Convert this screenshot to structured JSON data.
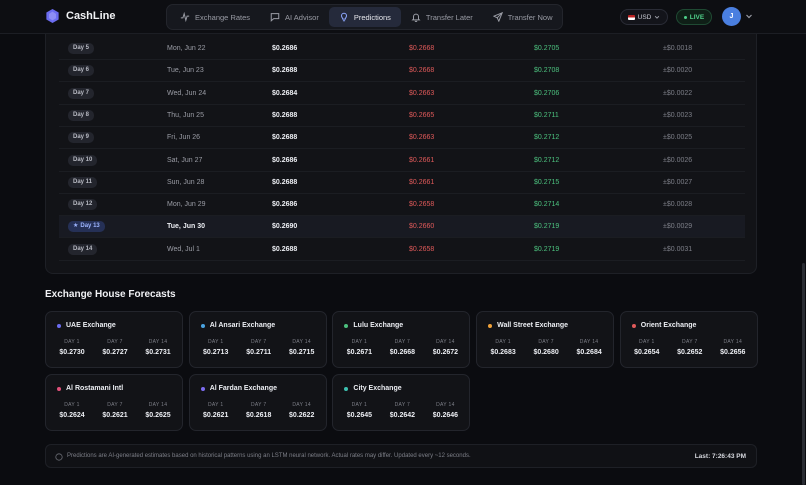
{
  "app": {
    "name": "CashLine",
    "logo_icon": "hexagon-logo-icon",
    "brand_color": "#6b6cf0"
  },
  "nav": [
    {
      "label": "Exchange Rates",
      "icon": "activity-icon",
      "active": false
    },
    {
      "label": "AI Advisor",
      "icon": "chat-icon",
      "active": false
    },
    {
      "label": "Predictions",
      "icon": "lightbulb-icon",
      "active": true
    },
    {
      "label": "Transfer Later",
      "icon": "bell-icon",
      "active": false
    },
    {
      "label": "Transfer Now",
      "icon": "send-icon",
      "active": false
    }
  ],
  "header": {
    "currency": "USD",
    "live": "LIVE",
    "avatar": "J"
  },
  "table": {
    "rows": [
      {
        "day": "Day 5",
        "date": "Mon, Jun 22",
        "pred": "$0.2686",
        "low": "$0.2668",
        "high": "$0.2705",
        "conf": "±$0.0018",
        "highlight": false
      },
      {
        "day": "Day 6",
        "date": "Tue, Jun 23",
        "pred": "$0.2688",
        "low": "$0.2668",
        "high": "$0.2708",
        "conf": "±$0.0020",
        "highlight": false
      },
      {
        "day": "Day 7",
        "date": "Wed, Jun 24",
        "pred": "$0.2684",
        "low": "$0.2663",
        "high": "$0.2706",
        "conf": "±$0.0022",
        "highlight": false
      },
      {
        "day": "Day 8",
        "date": "Thu, Jun 25",
        "pred": "$0.2688",
        "low": "$0.2665",
        "high": "$0.2711",
        "conf": "±$0.0023",
        "highlight": false
      },
      {
        "day": "Day 9",
        "date": "Fri, Jun 26",
        "pred": "$0.2688",
        "low": "$0.2663",
        "high": "$0.2712",
        "conf": "±$0.0025",
        "highlight": false
      },
      {
        "day": "Day 10",
        "date": "Sat, Jun 27",
        "pred": "$0.2686",
        "low": "$0.2661",
        "high": "$0.2712",
        "conf": "±$0.0026",
        "highlight": false
      },
      {
        "day": "Day 11",
        "date": "Sun, Jun 28",
        "pred": "$0.2688",
        "low": "$0.2661",
        "high": "$0.2715",
        "conf": "±$0.0027",
        "highlight": false
      },
      {
        "day": "Day 12",
        "date": "Mon, Jun 29",
        "pred": "$0.2686",
        "low": "$0.2658",
        "high": "$0.2714",
        "conf": "±$0.0028",
        "highlight": false
      },
      {
        "day": "Day 13",
        "date": "Tue, Jun 30",
        "pred": "$0.2690",
        "low": "$0.2660",
        "high": "$0.2719",
        "conf": "±$0.0029",
        "highlight": true
      },
      {
        "day": "Day 14",
        "date": "Wed, Jul 1",
        "pred": "$0.2688",
        "low": "$0.2658",
        "high": "$0.2719",
        "conf": "±$0.0031",
        "highlight": false
      }
    ]
  },
  "forecasts": {
    "title": "Exchange House Forecasts",
    "col_labels": [
      "DAY 1",
      "DAY 7",
      "DAY 14"
    ],
    "cards": [
      {
        "name": "UAE Exchange",
        "color": "#6b6cf0",
        "values": [
          "$0.2730",
          "$0.2727",
          "$0.2731"
        ]
      },
      {
        "name": "Al Ansari Exchange",
        "color": "#4aa3e0",
        "values": [
          "$0.2713",
          "$0.2711",
          "$0.2715"
        ]
      },
      {
        "name": "Lulu Exchange",
        "color": "#4cc07e",
        "values": [
          "$0.2671",
          "$0.2668",
          "$0.2672"
        ]
      },
      {
        "name": "Wall Street Exchange",
        "color": "#f0a23a",
        "values": [
          "$0.2683",
          "$0.2680",
          "$0.2684"
        ]
      },
      {
        "name": "Orient Exchange",
        "color": "#e05a5a",
        "values": [
          "$0.2654",
          "$0.2652",
          "$0.2656"
        ]
      },
      {
        "name": "Al Rostamani Intl",
        "color": "#e0507a",
        "values": [
          "$0.2624",
          "$0.2621",
          "$0.2625"
        ]
      },
      {
        "name": "Al Fardan Exchange",
        "color": "#7c6cf0",
        "values": [
          "$0.2621",
          "$0.2618",
          "$0.2622"
        ]
      },
      {
        "name": "City Exchange",
        "color": "#3cc0b0",
        "values": [
          "$0.2645",
          "$0.2642",
          "$0.2646"
        ]
      }
    ]
  },
  "disclaimer": {
    "text": "Predictions are AI-generated estimates based on historical patterns using an LSTM neural network. Actual rates may differ. Updated every ~12 seconds.",
    "last": "Last: 7:26:43 PM"
  }
}
